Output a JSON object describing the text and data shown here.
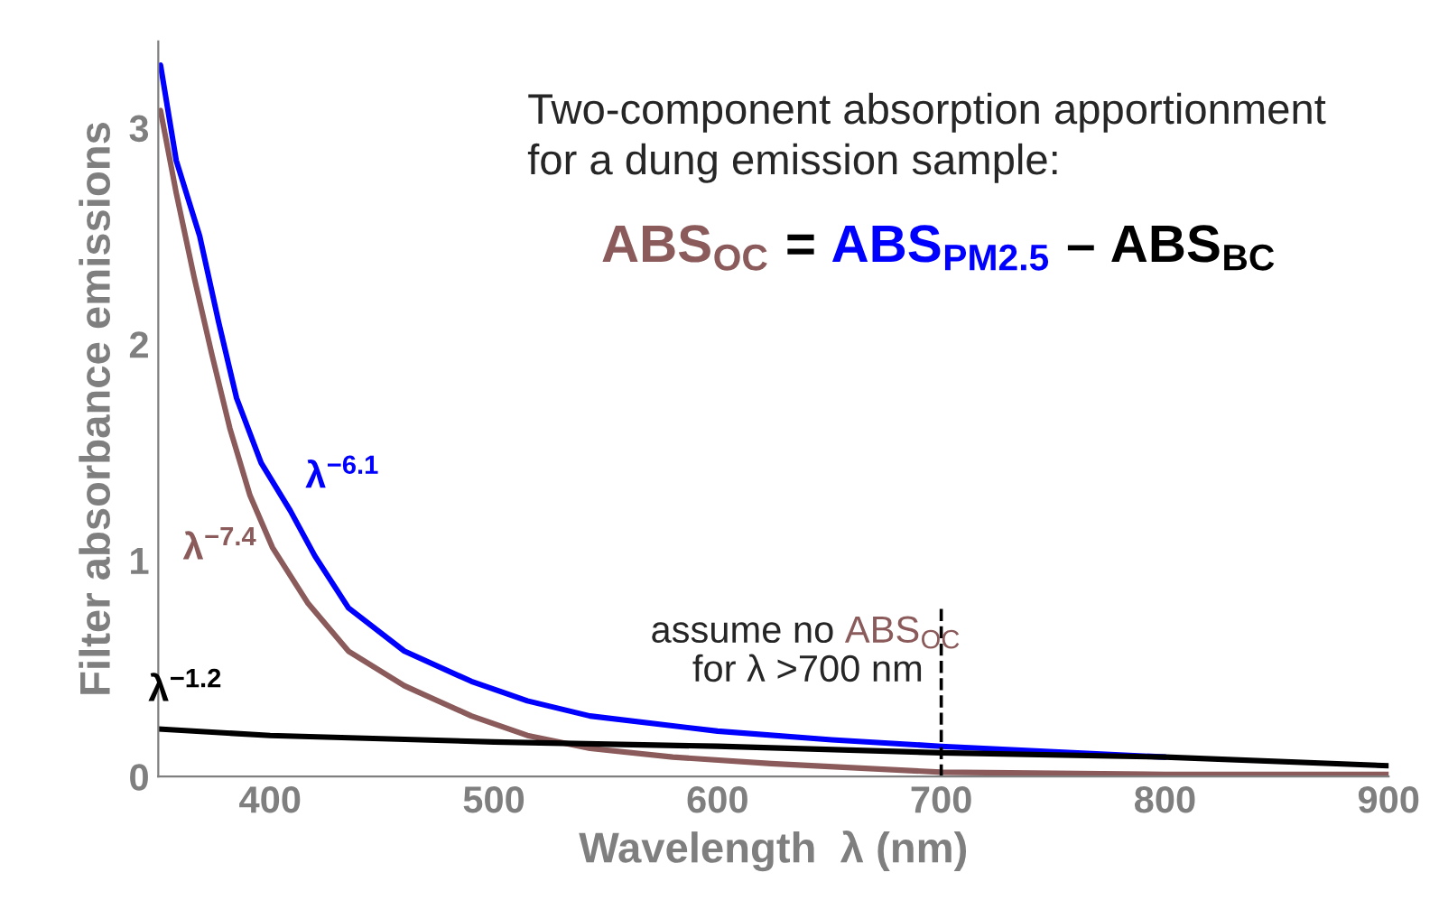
{
  "chart_data": {
    "type": "line",
    "xlabel": "Wavelength  λ (nm)",
    "ylabel": "Filter absorbance emissions",
    "xlim": [
      350,
      900
    ],
    "ylim": [
      0,
      3.4
    ],
    "xticks": [
      400,
      500,
      600,
      700,
      800,
      900
    ],
    "yticks": [
      0,
      1,
      2,
      3
    ],
    "grid": false,
    "series": [
      {
        "name": "ABS$_{PM2.5}$",
        "color": "#0000ff",
        "x": [
          351,
          358,
          368.5,
          377,
          385,
          396,
          409,
          420,
          435,
          460,
          490,
          515,
          543,
          600,
          651,
          700,
          800
        ],
        "values": [
          3.29,
          2.85,
          2.5,
          2.1,
          1.75,
          1.45,
          1.23,
          1.02,
          0.78,
          0.58,
          0.44,
          0.35,
          0.28,
          0.21,
          0.17,
          0.14,
          0.09
        ]
      },
      {
        "name": "ABS$_{OC}$",
        "color": "#8b5a5a",
        "x": [
          351,
          358,
          366,
          374,
          382,
          391,
          401,
          417,
          435,
          460,
          490,
          515,
          543,
          580,
          624,
          700,
          800,
          900
        ],
        "values": [
          3.08,
          2.7,
          2.31,
          1.95,
          1.61,
          1.3,
          1.06,
          0.8,
          0.58,
          0.42,
          0.28,
          0.19,
          0.13,
          0.09,
          0.06,
          0.02,
          0.01,
          0.01
        ]
      },
      {
        "name": "ABS$_{BC}$",
        "color": "#000000",
        "x": [
          350,
          400,
          500,
          600,
          700,
          800,
          900
        ],
        "values": [
          0.22,
          0.19,
          0.16,
          0.14,
          0.11,
          0.09,
          0.05
        ]
      }
    ],
    "ref_lines": [
      {
        "axis": "x",
        "value": 700,
        "color": "#000000",
        "line_style": "dashed"
      }
    ],
    "annotations": [
      "Two-component absorption apportionment\nfor a dung emission sample:",
      "=",
      "–",
      "λ$^{−6.1}$",
      "λ$^{−7.4}$",
      "λ$^{−1.2}$",
      "assume no ",
      "ABS$_{OC}$",
      "for λ >700 nm"
    ]
  }
}
